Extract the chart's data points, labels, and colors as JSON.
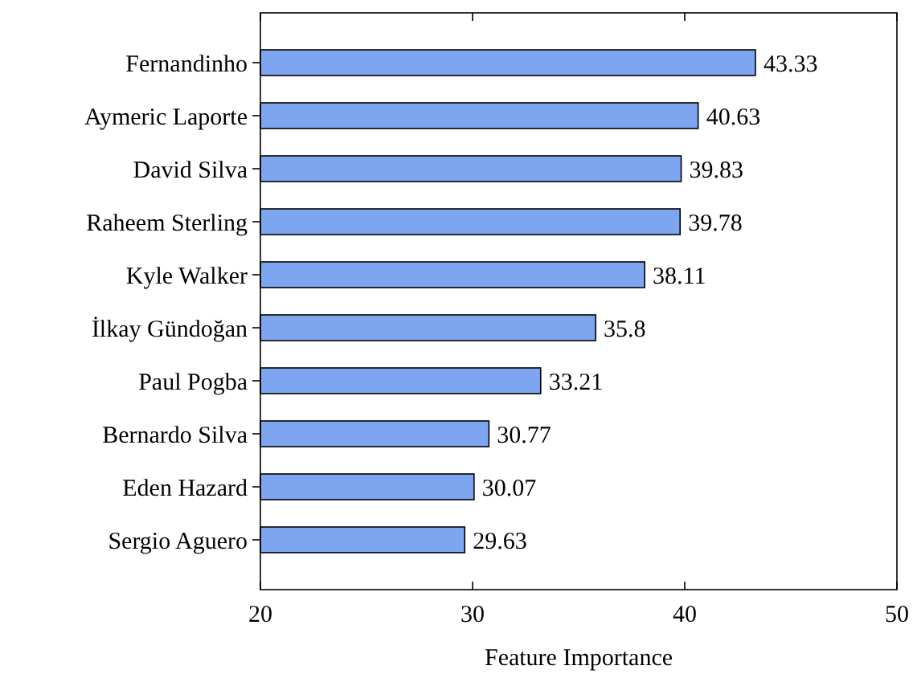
{
  "chart_data": {
    "type": "bar",
    "orientation": "horizontal",
    "xlabel": "Feature Importance",
    "categories": [
      "Fernandinho",
      "Aymeric Laporte",
      "David Silva",
      "Raheem Sterling",
      "Kyle Walker",
      "İlkay Gündoğan",
      "Paul Pogba",
      "Bernardo Silva",
      "Eden Hazard",
      "Sergio Aguero"
    ],
    "values": [
      43.33,
      40.63,
      39.83,
      39.78,
      38.11,
      35.8,
      33.21,
      30.77,
      30.07,
      29.63
    ],
    "color": "#7ea6f0",
    "xlim": [
      20,
      50
    ],
    "xticks": [
      20,
      30,
      40,
      50
    ],
    "data_labels": true,
    "grid": false
  }
}
